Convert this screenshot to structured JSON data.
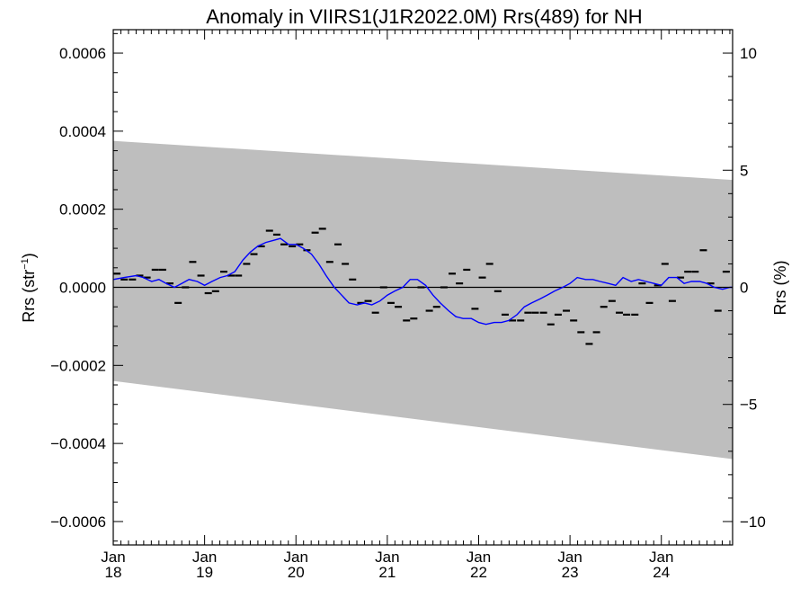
{
  "chart_data": {
    "type": "line",
    "title": "Anomaly in VIIRS1(J1R2022.0M) Rrs(489) for NH",
    "ylabel": "Rrs (str",
    "ylabel_sup": "−1",
    "ylabel_close": ")",
    "y2label": "Rrs (%)",
    "ylim": [
      -0.00066,
      0.00066
    ],
    "y2lim": [
      -11,
      11
    ],
    "xlim": [
      2018.0,
      2024.78
    ],
    "yticks": [
      {
        "value": 0.0006,
        "label": "0.0006"
      },
      {
        "value": 0.0004,
        "label": "0.0004"
      },
      {
        "value": 0.0002,
        "label": "0.0002"
      },
      {
        "value": 0.0,
        "label": "0.0000"
      },
      {
        "value": -0.0002,
        "label": "−0.0002"
      },
      {
        "value": -0.0004,
        "label": "−0.0004"
      },
      {
        "value": -0.0006,
        "label": "−0.0006"
      }
    ],
    "y2ticks": [
      {
        "value": 10,
        "label": "10"
      },
      {
        "value": 5,
        "label": "5"
      },
      {
        "value": 0,
        "label": "0"
      },
      {
        "value": -5,
        "label": "−5"
      },
      {
        "value": -10,
        "label": "−10"
      }
    ],
    "xticks": [
      {
        "value": 2018,
        "month": "Jan",
        "year": "18"
      },
      {
        "value": 2019,
        "month": "Jan",
        "year": "19"
      },
      {
        "value": 2020,
        "month": "Jan",
        "year": "20"
      },
      {
        "value": 2021,
        "month": "Jan",
        "year": "21"
      },
      {
        "value": 2022,
        "month": "Jan",
        "year": "22"
      },
      {
        "value": 2023,
        "month": "Jan",
        "year": "23"
      },
      {
        "value": 2024,
        "month": "Jan",
        "year": "24"
      }
    ],
    "grid": false,
    "uncertainty_band": {
      "x": [
        2018.0,
        2024.78
      ],
      "upper": [
        0.000375,
        0.000275
      ],
      "lower": [
        -0.00024,
        -0.00044
      ],
      "color": "#bebebe"
    },
    "zero_line": 0.0,
    "series": [
      {
        "style": "monthly-dash",
        "color": "#000000",
        "x": [
          2018.04,
          2018.12,
          2018.21,
          2018.29,
          2018.37,
          2018.46,
          2018.54,
          2018.62,
          2018.71,
          2018.79,
          2018.87,
          2018.96,
          2019.04,
          2019.12,
          2019.21,
          2019.29,
          2019.37,
          2019.46,
          2019.54,
          2019.62,
          2019.71,
          2019.79,
          2019.87,
          2019.96,
          2020.04,
          2020.12,
          2020.21,
          2020.29,
          2020.37,
          2020.46,
          2020.54,
          2020.62,
          2020.71,
          2020.79,
          2020.87,
          2020.96,
          2021.04,
          2021.12,
          2021.21,
          2021.29,
          2021.37,
          2021.46,
          2021.54,
          2021.62,
          2021.71,
          2021.79,
          2021.87,
          2021.96,
          2022.04,
          2022.12,
          2022.21,
          2022.29,
          2022.37,
          2022.46,
          2022.54,
          2022.62,
          2022.71,
          2022.79,
          2022.87,
          2022.96,
          2023.04,
          2023.12,
          2023.21,
          2023.29,
          2023.37,
          2023.46,
          2023.54,
          2023.62,
          2023.71,
          2023.79,
          2023.87,
          2023.96,
          2024.04,
          2024.12,
          2024.21,
          2024.29,
          2024.37,
          2024.46,
          2024.54,
          2024.62,
          2024.71
        ],
        "values": [
          3.5e-05,
          2e-05,
          2e-05,
          3e-05,
          2.5e-05,
          4.5e-05,
          4.5e-05,
          1e-05,
          -4e-05,
          0.0,
          6.5e-05,
          3e-05,
          -1.5e-05,
          -1e-05,
          4e-05,
          3e-05,
          3e-05,
          6e-05,
          8.5e-05,
          0.000105,
          0.000145,
          0.000135,
          0.00011,
          0.000105,
          0.00011,
          9.5e-05,
          0.00014,
          0.00015,
          6.5e-05,
          0.00011,
          6e-05,
          2e-05,
          -4e-05,
          -3.5e-05,
          -6.5e-05,
          0.0,
          -4e-05,
          -5e-05,
          -8.5e-05,
          -8e-05,
          0.0,
          -6e-05,
          -5e-05,
          0.0,
          3.5e-05,
          1e-05,
          4.5e-05,
          -5.5e-05,
          2.5e-05,
          6e-05,
          -1e-05,
          -7e-05,
          -8.5e-05,
          -8.5e-05,
          -6.5e-05,
          -6.5e-05,
          -6.5e-05,
          -9.5e-05,
          -7e-05,
          -6e-05,
          -8.5e-05,
          -0.000115,
          -0.000145,
          -0.000115,
          -5e-05,
          -3.5e-05,
          -6.5e-05,
          -7e-05,
          -7e-05,
          1e-05,
          -4e-05,
          5e-06,
          6e-05,
          -3.5e-05,
          2.5e-05,
          4e-05,
          4e-05,
          9.5e-05,
          1e-05,
          -6e-05,
          4e-05
        ]
      },
      {
        "style": "smoothed-line",
        "color": "#0000ff",
        "x": [
          2018.0,
          2018.12,
          2018.25,
          2018.33,
          2018.42,
          2018.5,
          2018.58,
          2018.67,
          2018.75,
          2018.83,
          2018.92,
          2019.0,
          2019.08,
          2019.17,
          2019.25,
          2019.33,
          2019.42,
          2019.5,
          2019.58,
          2019.67,
          2019.75,
          2019.83,
          2019.92,
          2020.0,
          2020.08,
          2020.17,
          2020.25,
          2020.33,
          2020.42,
          2020.5,
          2020.58,
          2020.67,
          2020.75,
          2020.83,
          2020.92,
          2021.0,
          2021.08,
          2021.17,
          2021.25,
          2021.33,
          2021.42,
          2021.5,
          2021.58,
          2021.67,
          2021.75,
          2021.83,
          2021.92,
          2022.0,
          2022.08,
          2022.17,
          2022.25,
          2022.33,
          2022.42,
          2022.5,
          2022.58,
          2022.67,
          2022.75,
          2022.83,
          2022.92,
          2023.0,
          2023.08,
          2023.17,
          2023.25,
          2023.33,
          2023.42,
          2023.5,
          2023.58,
          2023.67,
          2023.75,
          2023.83,
          2023.92,
          2024.0,
          2024.08,
          2024.17,
          2024.25,
          2024.33,
          2024.42,
          2024.5,
          2024.58,
          2024.67,
          2024.75,
          2024.78
        ],
        "values": [
          2e-05,
          2.5e-05,
          3e-05,
          2.5e-05,
          1.5e-05,
          2e-05,
          1e-05,
          0.0,
          1e-05,
          2e-05,
          1.5e-05,
          5e-06,
          1.5e-05,
          2.5e-05,
          3e-05,
          4e-05,
          7e-05,
          9e-05,
          0.000105,
          0.000115,
          0.00012,
          0.000125,
          0.00011,
          0.00011,
          0.0001,
          8.5e-05,
          6e-05,
          3e-05,
          0.0,
          -2e-05,
          -4e-05,
          -4.5e-05,
          -4e-05,
          -4.5e-05,
          -3.5e-05,
          -2e-05,
          -1e-05,
          0.0,
          2e-05,
          2e-05,
          5e-06,
          -2e-05,
          -4e-05,
          -6e-05,
          -7.5e-05,
          -8e-05,
          -8e-05,
          -9e-05,
          -9.5e-05,
          -9e-05,
          -9e-05,
          -8.5e-05,
          -7e-05,
          -5e-05,
          -4e-05,
          -3e-05,
          -2e-05,
          -1e-05,
          0.0,
          1e-05,
          2.5e-05,
          2e-05,
          2e-05,
          1.5e-05,
          1e-05,
          5e-06,
          2.5e-05,
          1.5e-05,
          2e-05,
          1.5e-05,
          1e-05,
          5e-06,
          2.5e-05,
          2.5e-05,
          1e-05,
          1.5e-05,
          1.5e-05,
          1e-05,
          0.0,
          -5e-06,
          0.0,
          0.0
        ]
      }
    ]
  }
}
